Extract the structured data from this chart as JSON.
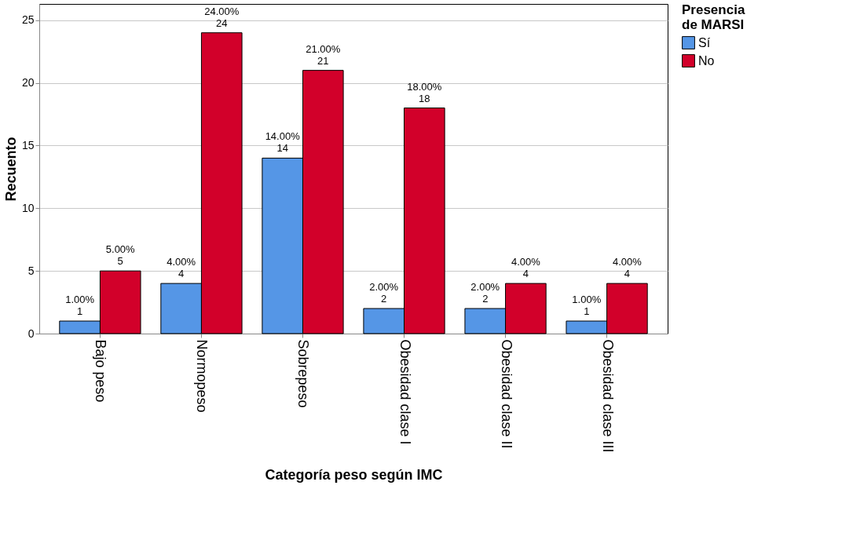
{
  "chart_data": {
    "type": "bar",
    "xlabel": "Categoría peso según IMC",
    "ylabel": "Recuento",
    "legend_title": "Presencia de MARSI",
    "categories": [
      "Bajo peso",
      "Normopeso",
      "Sobrepeso",
      "Obesidad clase I",
      "Obesidad clase II",
      "Obesidad clase III"
    ],
    "series": [
      {
        "name": "Sí",
        "color": "#5596e6",
        "values": [
          1,
          4,
          14,
          2,
          2,
          1
        ],
        "value_labels": [
          "1.00%\n1",
          "4.00%\n4",
          "14.00%\n14",
          "2.00%\n2",
          "2.00%\n2",
          "1.00%\n1"
        ]
      },
      {
        "name": "No",
        "color": "#d2002a",
        "values": [
          5,
          24,
          21,
          18,
          4,
          4
        ],
        "value_labels": [
          "5.00%\n5",
          "24.00%\n24",
          "21.00%\n21",
          "18.00%\n18",
          "4.00%\n4",
          "4.00%\n4"
        ]
      }
    ],
    "ylim": [
      0,
      26.3
    ],
    "yticks": [
      0,
      5,
      10,
      15,
      20,
      25
    ],
    "grid": "y",
    "legend": "top right"
  }
}
